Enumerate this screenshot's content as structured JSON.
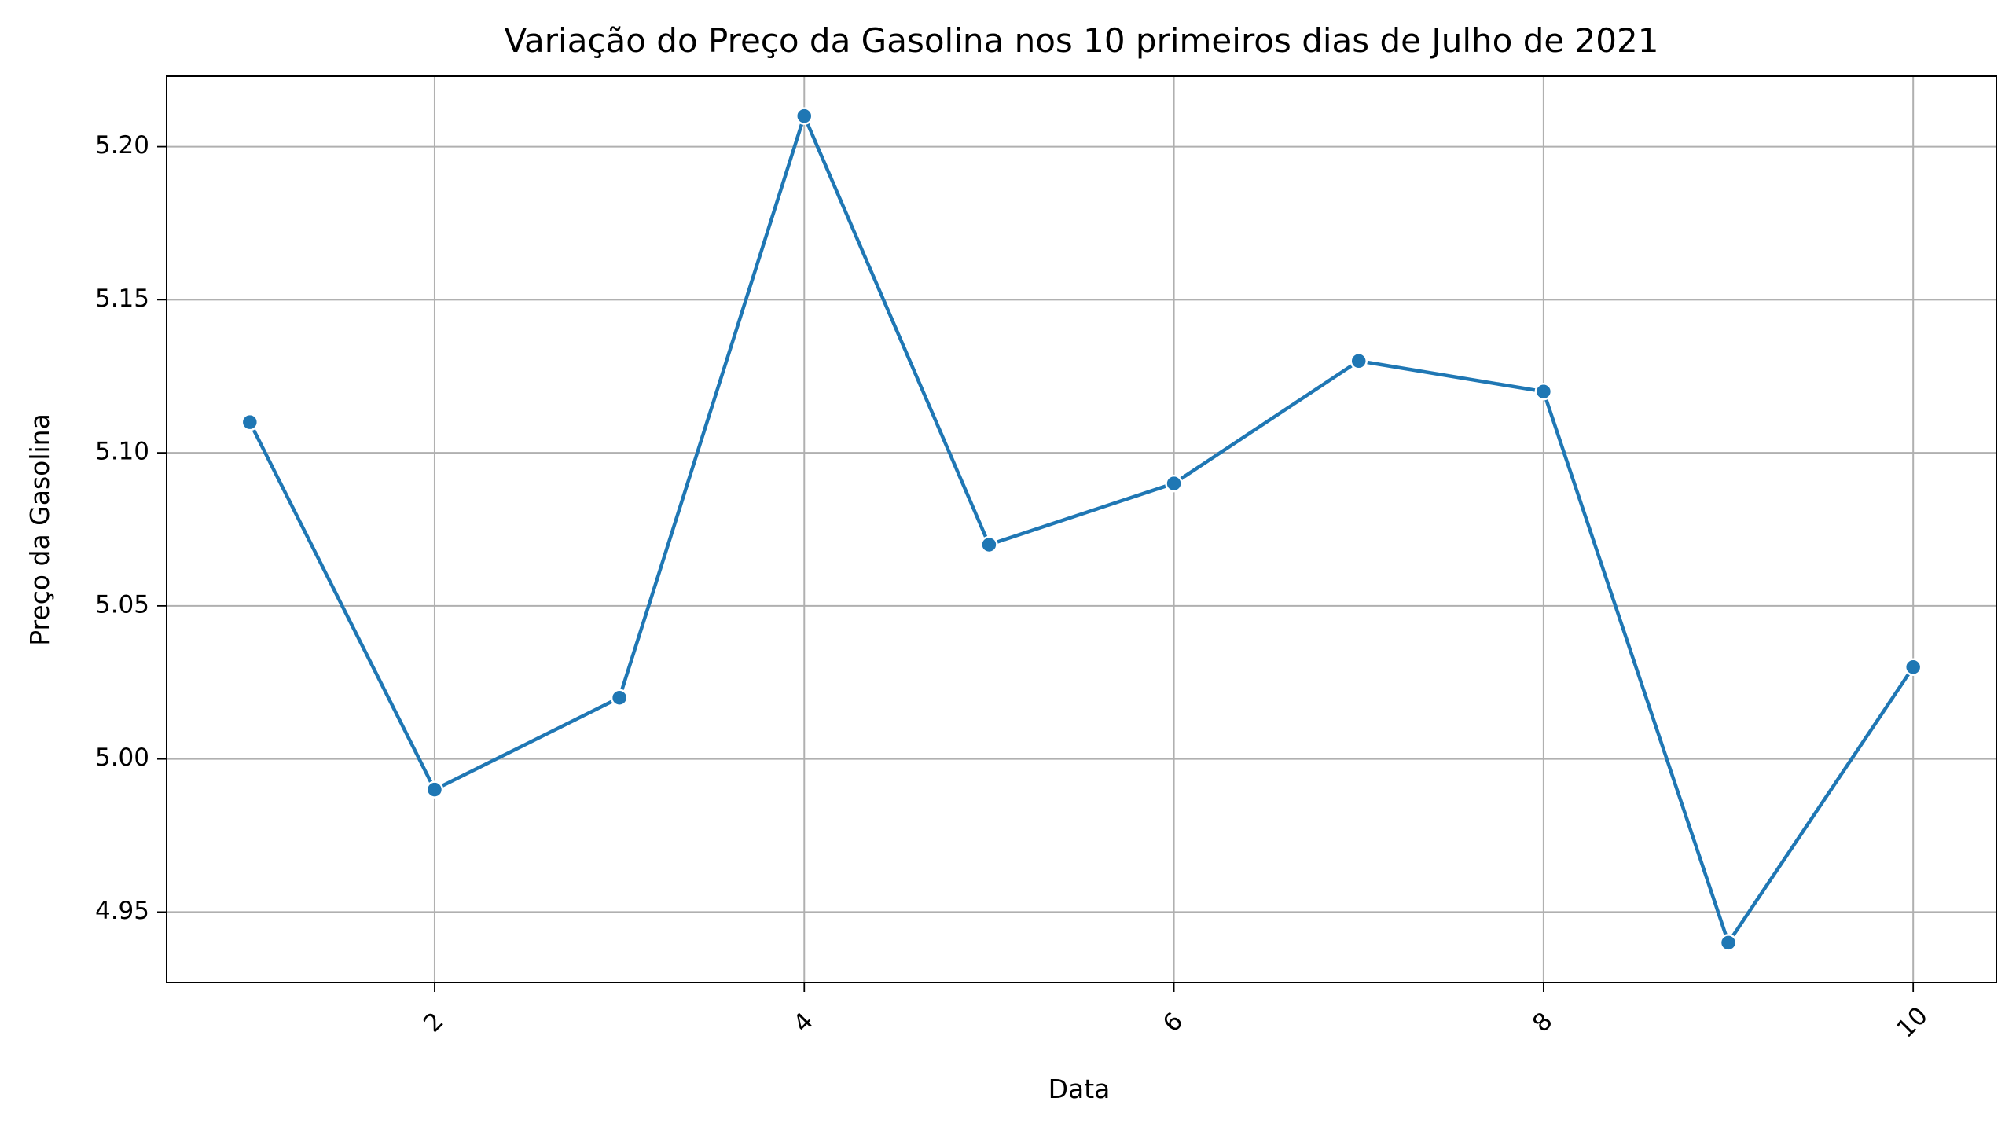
{
  "chart_data": {
    "type": "line",
    "title": "Variação do Preço da Gasolina nos 10 primeiros dias de Julho de 2021",
    "xlabel": "Data",
    "ylabel": "Preço da Gasolina",
    "x": [
      1,
      2,
      3,
      4,
      5,
      6,
      7,
      8,
      9,
      10
    ],
    "series": [
      {
        "values": [
          5.11,
          4.99,
          5.02,
          5.21,
          5.07,
          5.09,
          5.13,
          5.12,
          4.94,
          5.03
        ]
      }
    ],
    "xlim": [
      0.55,
      10.45
    ],
    "ylim": [
      4.927,
      5.223
    ],
    "xticks": [
      2,
      4,
      6,
      8,
      10
    ],
    "xtick_labels": [
      "2",
      "4",
      "6",
      "8",
      "10"
    ],
    "xtick_rotation_deg": 45,
    "yticks": [
      4.95,
      5.0,
      5.05,
      5.1,
      5.15,
      5.2
    ],
    "ytick_labels": [
      "4.95",
      "5.00",
      "5.05",
      "5.10",
      "5.15",
      "5.20"
    ],
    "grid": true,
    "legend": "none",
    "colors": {
      "series": "#1f77b4",
      "grid": "#b0b0b0",
      "axes": "#000000"
    }
  }
}
